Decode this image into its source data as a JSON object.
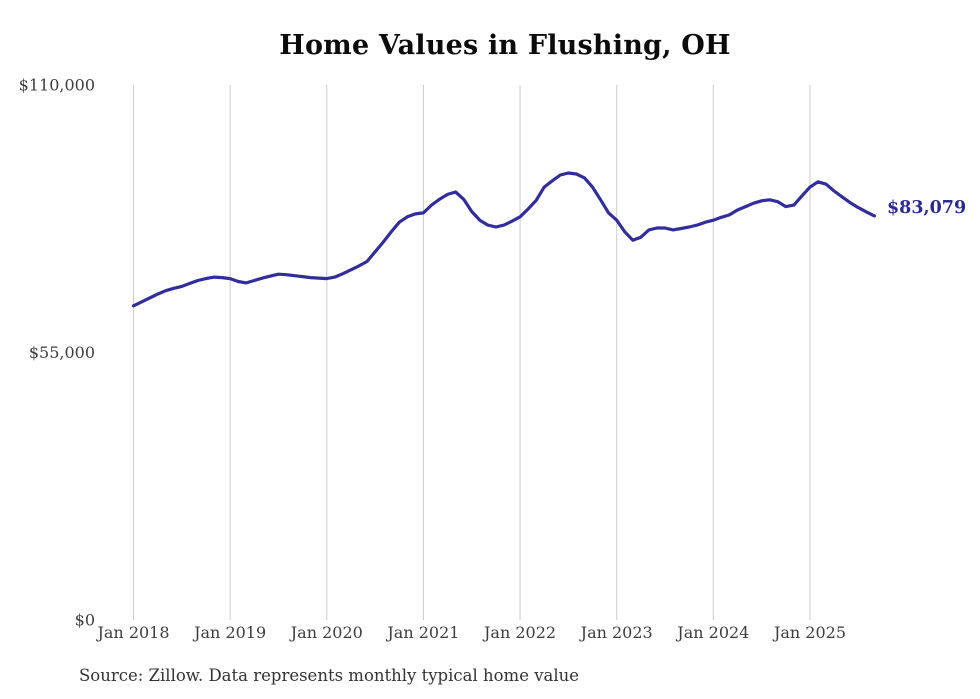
{
  "header": {
    "title": "Home Values in Flushing, OH"
  },
  "source_note": "Source: Zillow. Data represents monthly typical home value",
  "colors": {
    "line": "#312e9c",
    "end_label": "#2b2a94",
    "grid": "#cbcbcb",
    "axis_text": "#3d3d3d",
    "title_text": "#0c0c0c",
    "source_text": "#333333",
    "background": "#ffffff"
  },
  "chart_data": {
    "type": "line",
    "title": "Home Values in Flushing, OH",
    "xlabel": "",
    "ylabel": "",
    "x_ticks": [
      "Jan 2018",
      "Jan 2019",
      "Jan 2020",
      "Jan 2021",
      "Jan 2022",
      "Jan 2023",
      "Jan 2024",
      "Jan 2025"
    ],
    "y_ticks": [
      {
        "label": "$110,000",
        "value": 110000
      },
      {
        "label": "$55,000",
        "value": 55000
      },
      {
        "label": "$0",
        "value": 0
      }
    ],
    "ylim": [
      0,
      110000
    ],
    "grid": "vertical-only",
    "legend": "none",
    "frequency": "monthly",
    "x_start": "Jan 2018",
    "x_end": "Sep 2025",
    "end_label": "$83,079",
    "last_value": 83079,
    "series": [
      {
        "name": "Typical home value",
        "values": [
          64600,
          65400,
          66200,
          67000,
          67700,
          68200,
          68600,
          69200,
          69800,
          70200,
          70500,
          70400,
          70200,
          69600,
          69300,
          69800,
          70300,
          70700,
          71100,
          71000,
          70800,
          70600,
          70400,
          70300,
          70200,
          70500,
          71200,
          72000,
          72800,
          73700,
          75700,
          77700,
          79800,
          81800,
          82900,
          83500,
          83700,
          85300,
          86500,
          87500,
          88000,
          86500,
          84000,
          82200,
          81200,
          80800,
          81200,
          82000,
          82900,
          84500,
          86300,
          89000,
          90300,
          91500,
          91900,
          91700,
          90900,
          89000,
          86400,
          83700,
          82200,
          79800,
          78100,
          78700,
          80200,
          80600,
          80600,
          80200,
          80500,
          80800,
          81200,
          81800,
          82200,
          82800,
          83300,
          84300,
          85000,
          85700,
          86200,
          86400,
          86000,
          85000,
          85300,
          87200,
          89000,
          90100,
          89600,
          88200,
          87000,
          85800,
          84800,
          83900,
          83079
        ]
      }
    ]
  }
}
